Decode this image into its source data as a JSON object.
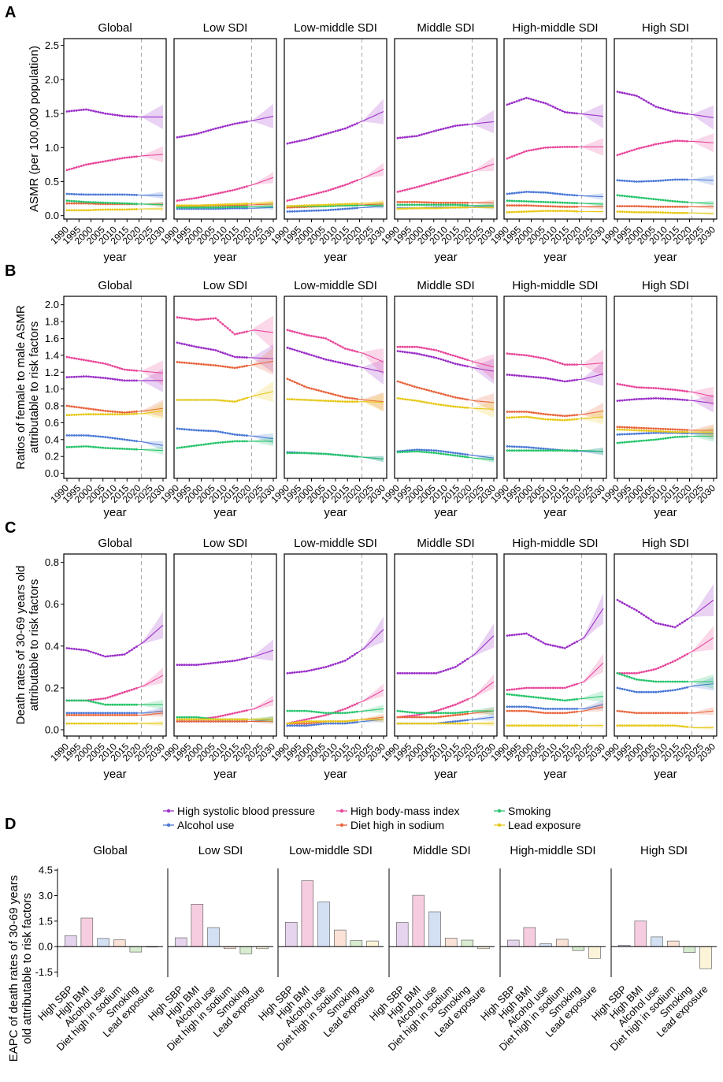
{
  "colors": {
    "high_sbp": "#9b30c8",
    "high_bmi": "#e8489a",
    "alcohol": "#4a78d6",
    "sodium": "#e8643c",
    "smoking": "#25c46a",
    "lead": "#e6c81a",
    "sbp_fill": "#e6d4ee",
    "bmi_fill": "#f6cde0",
    "alcohol_fill": "#d3e0f3",
    "sodium_fill": "#fbe2d6",
    "smoking_fill": "#d8ecd0",
    "lead_fill": "#fbf4d8"
  },
  "facets": [
    "Global",
    "Low SDI",
    "Low-middle SDI",
    "Middle SDI",
    "High-middle SDI",
    "High SDI"
  ],
  "legend": [
    {
      "key": "high_sbp",
      "label": "High systolic blood pressure"
    },
    {
      "key": "high_bmi",
      "label": "High body-mass index"
    },
    {
      "key": "smoking",
      "label": "Smoking"
    },
    {
      "key": "alcohol",
      "label": "Alcohol use"
    },
    {
      "key": "sodium",
      "label": "Diet high in sodium"
    },
    {
      "key": "lead",
      "label": "Lead exposure"
    }
  ],
  "year_ticks": [
    1990,
    1995,
    2000,
    2005,
    2010,
    2015,
    2020,
    2025,
    2030
  ],
  "projection_start": 2021,
  "panel_a": {
    "letter": "A",
    "type": "line",
    "ylabel": "ASMR (per 100,000 population)",
    "xlabel": "year",
    "ylim": [
      -0.05,
      2.6
    ],
    "yticks": [
      0.0,
      0.5,
      1.0,
      1.5,
      2.0,
      2.5
    ],
    "series_by_facet": [
      {
        "high_sbp": [
          1.53,
          1.56,
          1.5,
          1.46,
          1.45,
          1.45
        ],
        "high_bmi": [
          0.67,
          0.75,
          0.8,
          0.85,
          0.88,
          0.9
        ],
        "alcohol": [
          0.32,
          0.31,
          0.31,
          0.31,
          0.3,
          0.3
        ],
        "sodium": [
          0.18,
          0.18,
          0.17,
          0.17,
          0.17,
          0.17
        ],
        "smoking": [
          0.22,
          0.2,
          0.19,
          0.18,
          0.17,
          0.16
        ],
        "lead": [
          0.08,
          0.08,
          0.09,
          0.09,
          0.1,
          0.1
        ]
      },
      {
        "high_sbp": [
          1.15,
          1.2,
          1.28,
          1.35,
          1.4,
          1.46
        ],
        "high_bmi": [
          0.22,
          0.26,
          0.32,
          0.38,
          0.46,
          0.56
        ],
        "alcohol": [
          0.1,
          0.1,
          0.1,
          0.11,
          0.11,
          0.12
        ],
        "sodium": [
          0.14,
          0.14,
          0.15,
          0.15,
          0.16,
          0.17
        ],
        "smoking": [
          0.12,
          0.12,
          0.12,
          0.13,
          0.13,
          0.14
        ],
        "lead": [
          0.15,
          0.15,
          0.16,
          0.17,
          0.18,
          0.19
        ]
      },
      {
        "high_sbp": [
          1.06,
          1.12,
          1.2,
          1.28,
          1.4,
          1.53
        ],
        "high_bmi": [
          0.22,
          0.29,
          0.36,
          0.45,
          0.56,
          0.68
        ],
        "alcohol": [
          0.06,
          0.07,
          0.08,
          0.1,
          0.12,
          0.14
        ],
        "sodium": [
          0.12,
          0.13,
          0.14,
          0.15,
          0.16,
          0.17
        ],
        "smoking": [
          0.14,
          0.14,
          0.14,
          0.15,
          0.15,
          0.15
        ],
        "lead": [
          0.14,
          0.15,
          0.16,
          0.17,
          0.18,
          0.19
        ]
      },
      {
        "high_sbp": [
          1.14,
          1.17,
          1.25,
          1.32,
          1.35,
          1.38
        ],
        "high_bmi": [
          0.35,
          0.42,
          0.5,
          0.58,
          0.66,
          0.76
        ],
        "alcohol": [
          0.11,
          0.11,
          0.12,
          0.12,
          0.13,
          0.13
        ],
        "sodium": [
          0.2,
          0.2,
          0.19,
          0.19,
          0.19,
          0.19
        ],
        "smoking": [
          0.16,
          0.16,
          0.16,
          0.16,
          0.15,
          0.15
        ],
        "lead": [
          0.1,
          0.11,
          0.11,
          0.12,
          0.12,
          0.12
        ]
      },
      {
        "high_sbp": [
          1.63,
          1.73,
          1.65,
          1.52,
          1.49,
          1.46
        ],
        "high_bmi": [
          0.84,
          0.95,
          1.0,
          1.01,
          1.01,
          1.01
        ],
        "alcohol": [
          0.32,
          0.35,
          0.34,
          0.31,
          0.29,
          0.28
        ],
        "sodium": [
          0.15,
          0.15,
          0.14,
          0.13,
          0.13,
          0.13
        ],
        "smoking": [
          0.22,
          0.21,
          0.2,
          0.19,
          0.18,
          0.17
        ],
        "lead": [
          0.05,
          0.06,
          0.07,
          0.07,
          0.06,
          0.06
        ]
      },
      {
        "high_sbp": [
          1.82,
          1.76,
          1.6,
          1.52,
          1.48,
          1.44
        ],
        "high_bmi": [
          0.89,
          0.98,
          1.05,
          1.1,
          1.09,
          1.07
        ],
        "alcohol": [
          0.52,
          0.5,
          0.51,
          0.53,
          0.53,
          0.52
        ],
        "sodium": [
          0.14,
          0.14,
          0.13,
          0.13,
          0.13,
          0.13
        ],
        "smoking": [
          0.3,
          0.27,
          0.24,
          0.21,
          0.19,
          0.18
        ],
        "lead": [
          0.06,
          0.05,
          0.05,
          0.04,
          0.04,
          0.03
        ]
      }
    ]
  },
  "panel_b": {
    "letter": "B",
    "type": "line",
    "ylabel": "Ratios of female to male ASMR\nattributable to risk factors",
    "xlabel": "year",
    "ylim": [
      -0.06,
      2.1
    ],
    "yticks": [
      0.0,
      0.2,
      0.4,
      0.6,
      0.8,
      1.0,
      1.2,
      1.4,
      1.6,
      1.8,
      2.0
    ],
    "series_by_facet": [
      {
        "high_sbp": [
          1.14,
          1.15,
          1.13,
          1.1,
          1.1,
          1.1
        ],
        "high_bmi": [
          1.38,
          1.34,
          1.3,
          1.23,
          1.21,
          1.19
        ],
        "alcohol": [
          0.45,
          0.45,
          0.43,
          0.4,
          0.37,
          0.33
        ],
        "sodium": [
          0.8,
          0.77,
          0.74,
          0.72,
          0.74,
          0.77
        ],
        "smoking": [
          0.31,
          0.32,
          0.3,
          0.29,
          0.28,
          0.27
        ],
        "lead": [
          0.69,
          0.7,
          0.7,
          0.7,
          0.71,
          0.74
        ]
      },
      {
        "high_sbp": [
          1.55,
          1.5,
          1.46,
          1.38,
          1.37,
          1.36
        ],
        "high_bmi": [
          1.85,
          1.82,
          1.84,
          1.65,
          1.7,
          1.67
        ],
        "alcohol": [
          0.53,
          0.51,
          0.5,
          0.46,
          0.44,
          0.41
        ],
        "sodium": [
          1.32,
          1.3,
          1.28,
          1.25,
          1.29,
          1.33
        ],
        "smoking": [
          0.3,
          0.33,
          0.36,
          0.38,
          0.38,
          0.38
        ],
        "lead": [
          0.87,
          0.87,
          0.87,
          0.85,
          0.92,
          0.97
        ]
      },
      {
        "high_sbp": [
          1.49,
          1.42,
          1.35,
          1.3,
          1.25,
          1.2
        ],
        "high_bmi": [
          1.7,
          1.64,
          1.6,
          1.48,
          1.42,
          1.32
        ],
        "alcohol": [
          0.25,
          0.24,
          0.23,
          0.21,
          0.19,
          0.17
        ],
        "sodium": [
          1.12,
          1.02,
          0.96,
          0.9,
          0.87,
          0.85
        ],
        "smoking": [
          0.24,
          0.24,
          0.23,
          0.21,
          0.19,
          0.17
        ],
        "lead": [
          0.88,
          0.87,
          0.86,
          0.85,
          0.85,
          0.84
        ]
      },
      {
        "high_sbp": [
          1.45,
          1.42,
          1.37,
          1.3,
          1.25,
          1.21
        ],
        "high_bmi": [
          1.5,
          1.5,
          1.46,
          1.39,
          1.32,
          1.26
        ],
        "alcohol": [
          0.26,
          0.28,
          0.27,
          0.24,
          0.21,
          0.18
        ],
        "sodium": [
          1.09,
          1.02,
          0.96,
          0.9,
          0.86,
          0.84
        ],
        "smoking": [
          0.25,
          0.26,
          0.24,
          0.21,
          0.18,
          0.16
        ],
        "lead": [
          0.89,
          0.86,
          0.82,
          0.79,
          0.77,
          0.76
        ]
      },
      {
        "high_sbp": [
          1.17,
          1.15,
          1.13,
          1.09,
          1.12,
          1.18
        ],
        "high_bmi": [
          1.42,
          1.4,
          1.36,
          1.29,
          1.29,
          1.31
        ],
        "alcohol": [
          0.32,
          0.31,
          0.29,
          0.27,
          0.26,
          0.26
        ],
        "sodium": [
          0.73,
          0.73,
          0.7,
          0.68,
          0.7,
          0.74
        ],
        "smoking": [
          0.27,
          0.27,
          0.27,
          0.27,
          0.27,
          0.26
        ],
        "lead": [
          0.66,
          0.67,
          0.64,
          0.63,
          0.65,
          0.67
        ]
      },
      {
        "high_sbp": [
          0.86,
          0.88,
          0.89,
          0.88,
          0.86,
          0.83
        ],
        "high_bmi": [
          1.06,
          1.02,
          1.01,
          0.99,
          0.96,
          0.91
        ],
        "alcohol": [
          0.46,
          0.47,
          0.48,
          0.48,
          0.47,
          0.47
        ],
        "sodium": [
          0.55,
          0.54,
          0.53,
          0.52,
          0.51,
          0.51
        ],
        "smoking": [
          0.36,
          0.38,
          0.4,
          0.43,
          0.44,
          0.44
        ],
        "lead": [
          0.52,
          0.51,
          0.5,
          0.49,
          0.49,
          0.49
        ]
      }
    ]
  },
  "panel_c": {
    "letter": "C",
    "type": "line",
    "ylabel": "Death rates of 30-69 years old\nattributable to risk factors",
    "xlabel": "year",
    "ylim": [
      -0.03,
      0.84
    ],
    "yticks": [
      0.0,
      0.2,
      0.4,
      0.6,
      0.8
    ],
    "series_by_facet": [
      {
        "high_sbp": [
          0.39,
          0.38,
          0.35,
          0.36,
          0.42,
          0.5
        ],
        "high_bmi": [
          0.14,
          0.14,
          0.15,
          0.18,
          0.21,
          0.26
        ],
        "alcohol": [
          0.08,
          0.08,
          0.08,
          0.08,
          0.08,
          0.09
        ],
        "sodium": [
          0.07,
          0.07,
          0.07,
          0.07,
          0.07,
          0.08
        ],
        "smoking": [
          0.14,
          0.14,
          0.12,
          0.12,
          0.12,
          0.12
        ],
        "lead": [
          0.03,
          0.03,
          0.03,
          0.03,
          0.03,
          0.03
        ]
      },
      {
        "high_sbp": [
          0.31,
          0.31,
          0.32,
          0.33,
          0.35,
          0.38
        ],
        "high_bmi": [
          0.05,
          0.05,
          0.06,
          0.08,
          0.1,
          0.14
        ],
        "alcohol": [
          0.04,
          0.04,
          0.04,
          0.04,
          0.04,
          0.05
        ],
        "sodium": [
          0.04,
          0.04,
          0.04,
          0.04,
          0.04,
          0.04
        ],
        "smoking": [
          0.06,
          0.06,
          0.05,
          0.05,
          0.05,
          0.05
        ],
        "lead": [
          0.05,
          0.05,
          0.05,
          0.05,
          0.05,
          0.05
        ]
      },
      {
        "high_sbp": [
          0.27,
          0.28,
          0.3,
          0.33,
          0.39,
          0.48
        ],
        "high_bmi": [
          0.03,
          0.05,
          0.07,
          0.1,
          0.14,
          0.19
        ],
        "alcohol": [
          0.02,
          0.02,
          0.03,
          0.03,
          0.04,
          0.05
        ],
        "sodium": [
          0.03,
          0.03,
          0.04,
          0.04,
          0.05,
          0.06
        ],
        "smoking": [
          0.09,
          0.09,
          0.08,
          0.08,
          0.09,
          0.1
        ],
        "lead": [
          0.03,
          0.04,
          0.04,
          0.04,
          0.05,
          0.05
        ]
      },
      {
        "high_sbp": [
          0.27,
          0.27,
          0.27,
          0.3,
          0.36,
          0.45
        ],
        "high_bmi": [
          0.06,
          0.07,
          0.09,
          0.12,
          0.16,
          0.23
        ],
        "alcohol": [
          0.03,
          0.03,
          0.03,
          0.04,
          0.05,
          0.06
        ],
        "sodium": [
          0.06,
          0.06,
          0.06,
          0.07,
          0.08,
          0.09
        ],
        "smoking": [
          0.09,
          0.08,
          0.08,
          0.08,
          0.09,
          0.09
        ],
        "lead": [
          0.03,
          0.03,
          0.03,
          0.03,
          0.03,
          0.03
        ]
      },
      {
        "high_sbp": [
          0.45,
          0.46,
          0.41,
          0.39,
          0.44,
          0.58
        ],
        "high_bmi": [
          0.19,
          0.2,
          0.2,
          0.2,
          0.23,
          0.32
        ],
        "alcohol": [
          0.11,
          0.11,
          0.1,
          0.1,
          0.1,
          0.12
        ],
        "sodium": [
          0.09,
          0.09,
          0.08,
          0.08,
          0.09,
          0.11
        ],
        "smoking": [
          0.17,
          0.16,
          0.15,
          0.14,
          0.15,
          0.16
        ],
        "lead": [
          0.02,
          0.02,
          0.02,
          0.02,
          0.02,
          0.02
        ]
      },
      {
        "high_sbp": [
          0.62,
          0.57,
          0.51,
          0.49,
          0.55,
          0.62
        ],
        "high_bmi": [
          0.27,
          0.27,
          0.29,
          0.33,
          0.38,
          0.44
        ],
        "alcohol": [
          0.2,
          0.18,
          0.18,
          0.19,
          0.21,
          0.22
        ],
        "sodium": [
          0.09,
          0.08,
          0.08,
          0.08,
          0.08,
          0.09
        ],
        "smoking": [
          0.27,
          0.24,
          0.23,
          0.23,
          0.23,
          0.23
        ],
        "lead": [
          0.02,
          0.02,
          0.02,
          0.02,
          0.01,
          0.01
        ]
      }
    ]
  },
  "chart_data": {
    "type": "bar",
    "letter": "D",
    "ylabel": "EAPC of death rates of 30-69 years\nold attributable to risk factors",
    "yticks": [
      -1.5,
      0.0,
      1.5,
      3.0,
      4.5
    ],
    "ylim": [
      -1.8,
      4.6
    ],
    "categories": [
      "High SBP",
      "High BMI",
      "Alcohol use",
      "Diet high in sodium",
      "Smoking",
      "Lead exposure"
    ],
    "series": [
      {
        "name": "Global",
        "values": [
          0.65,
          1.68,
          0.48,
          0.4,
          -0.32,
          -0.03
        ]
      },
      {
        "name": "Low SDI",
        "values": [
          0.52,
          2.5,
          1.12,
          -0.12,
          -0.42,
          -0.12
        ]
      },
      {
        "name": "Low-middle SDI",
        "values": [
          1.43,
          3.87,
          2.63,
          0.98,
          0.35,
          0.33
        ]
      },
      {
        "name": "Middle SDI",
        "values": [
          1.42,
          3.02,
          2.05,
          0.5,
          0.38,
          -0.12
        ]
      },
      {
        "name": "High-middle SDI",
        "values": [
          0.38,
          1.12,
          0.16,
          0.43,
          -0.23,
          -0.7
        ]
      },
      {
        "name": "High SDI",
        "values": [
          0.08,
          1.5,
          0.57,
          0.33,
          -0.35,
          -1.3
        ]
      }
    ]
  }
}
